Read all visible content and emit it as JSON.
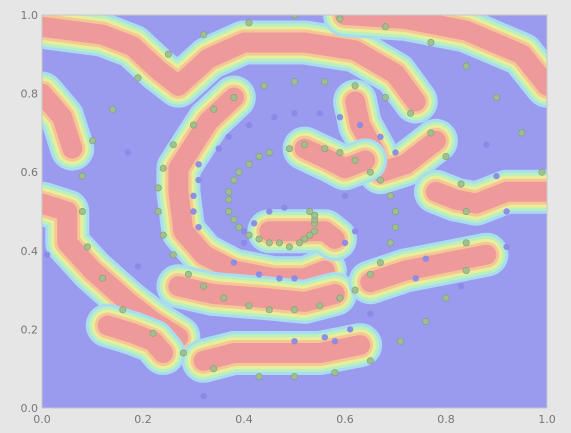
{
  "chart_data": {
    "type": "scatter",
    "title": "",
    "xlabel": "",
    "ylabel": "",
    "xlim": [
      0,
      1
    ],
    "ylim": [
      0,
      1
    ],
    "x_ticks": [
      "0.0",
      "0.2",
      "0.4",
      "0.6",
      "0.8",
      "1.0"
    ],
    "y_ticks": [
      "0.0",
      "0.2",
      "0.4",
      "0.6",
      "0.8",
      "1.0"
    ],
    "background": "decision-regions",
    "region_colors": {
      "class_a": "#ee9a9a",
      "class_b": "#9a9aee",
      "boundary": [
        "#f4c795",
        "#e9ee9a",
        "#b8f0c0",
        "#a9dcef"
      ]
    },
    "series": [
      {
        "color": "#8a8ae6",
        "points": [
          [
            0.31,
            0.58
          ],
          [
            0.31,
            0.62
          ],
          [
            0.35,
            0.66
          ],
          [
            0.37,
            0.69
          ],
          [
            0.41,
            0.72
          ],
          [
            0.46,
            0.74
          ],
          [
            0.5,
            0.75
          ],
          [
            0.55,
            0.75
          ],
          [
            0.59,
            0.74
          ],
          [
            0.63,
            0.72
          ],
          [
            0.67,
            0.69
          ],
          [
            0.7,
            0.65
          ],
          [
            0.6,
            0.54
          ],
          [
            0.6,
            0.42
          ],
          [
            0.62,
            0.45
          ],
          [
            0.3,
            0.5
          ],
          [
            0.3,
            0.54
          ],
          [
            0.31,
            0.46
          ],
          [
            0.38,
            0.37
          ],
          [
            0.43,
            0.34
          ],
          [
            0.47,
            0.33
          ],
          [
            0.5,
            0.33
          ],
          [
            0.32,
            0.03
          ],
          [
            0.5,
            0.17
          ],
          [
            0.56,
            0.18
          ],
          [
            0.58,
            0.17
          ],
          [
            0.61,
            0.2
          ],
          [
            0.65,
            0.24
          ],
          [
            0.74,
            0.33
          ],
          [
            0.76,
            0.38
          ],
          [
            0.83,
            0.31
          ],
          [
            0.88,
            0.67
          ],
          [
            0.9,
            0.59
          ],
          [
            0.92,
            0.5
          ],
          [
            0.92,
            0.41
          ],
          [
            0.19,
            0.36
          ],
          [
            0.17,
            0.65
          ],
          [
            0.01,
            0.39
          ],
          [
            0.45,
            0.5
          ],
          [
            0.42,
            0.47
          ],
          [
            0.4,
            0.45
          ],
          [
            0.4,
            0.42
          ],
          [
            0.48,
            0.51
          ]
        ]
      },
      {
        "color": "#9ebf8c",
        "points": [
          [
            0.32,
            0.95
          ],
          [
            0.41,
            0.98
          ],
          [
            0.5,
            1.0
          ],
          [
            0.59,
            0.99
          ],
          [
            0.68,
            0.97
          ],
          [
            0.77,
            0.93
          ],
          [
            0.84,
            0.87
          ],
          [
            0.9,
            0.79
          ],
          [
            0.95,
            0.7
          ],
          [
            0.99,
            0.6
          ],
          [
            0.25,
            0.9
          ],
          [
            0.19,
            0.84
          ],
          [
            0.14,
            0.76
          ],
          [
            0.1,
            0.68
          ],
          [
            0.08,
            0.59
          ],
          [
            0.08,
            0.5
          ],
          [
            0.09,
            0.41
          ],
          [
            0.12,
            0.33
          ],
          [
            0.16,
            0.25
          ],
          [
            0.22,
            0.19
          ],
          [
            0.28,
            0.14
          ],
          [
            0.34,
            0.1
          ],
          [
            0.43,
            0.08
          ],
          [
            0.5,
            0.08
          ],
          [
            0.58,
            0.09
          ],
          [
            0.65,
            0.12
          ],
          [
            0.71,
            0.17
          ],
          [
            0.76,
            0.22
          ],
          [
            0.8,
            0.28
          ],
          [
            0.84,
            0.35
          ],
          [
            0.84,
            0.42
          ],
          [
            0.84,
            0.5
          ],
          [
            0.83,
            0.57
          ],
          [
            0.8,
            0.64
          ],
          [
            0.77,
            0.7
          ],
          [
            0.73,
            0.75
          ],
          [
            0.68,
            0.79
          ],
          [
            0.62,
            0.82
          ],
          [
            0.56,
            0.83
          ],
          [
            0.5,
            0.83
          ],
          [
            0.44,
            0.82
          ],
          [
            0.38,
            0.79
          ],
          [
            0.34,
            0.76
          ],
          [
            0.3,
            0.72
          ],
          [
            0.26,
            0.67
          ],
          [
            0.24,
            0.61
          ],
          [
            0.23,
            0.56
          ],
          [
            0.23,
            0.5
          ],
          [
            0.24,
            0.44
          ],
          [
            0.26,
            0.39
          ],
          [
            0.29,
            0.34
          ],
          [
            0.32,
            0.31
          ],
          [
            0.36,
            0.28
          ],
          [
            0.41,
            0.26
          ],
          [
            0.45,
            0.25
          ],
          [
            0.5,
            0.25
          ],
          [
            0.55,
            0.26
          ],
          [
            0.59,
            0.28
          ],
          [
            0.62,
            0.3
          ],
          [
            0.65,
            0.34
          ],
          [
            0.67,
            0.37
          ],
          [
            0.69,
            0.42
          ],
          [
            0.7,
            0.46
          ],
          [
            0.7,
            0.5
          ],
          [
            0.69,
            0.54
          ],
          [
            0.67,
            0.58
          ],
          [
            0.65,
            0.6
          ],
          [
            0.62,
            0.63
          ],
          [
            0.59,
            0.65
          ],
          [
            0.56,
            0.66
          ],
          [
            0.52,
            0.67
          ],
          [
            0.49,
            0.66
          ],
          [
            0.45,
            0.65
          ],
          [
            0.43,
            0.64
          ],
          [
            0.41,
            0.62
          ],
          [
            0.39,
            0.6
          ],
          [
            0.38,
            0.58
          ],
          [
            0.37,
            0.55
          ],
          [
            0.37,
            0.53
          ],
          [
            0.37,
            0.5
          ],
          [
            0.38,
            0.48
          ],
          [
            0.39,
            0.46
          ],
          [
            0.41,
            0.44
          ],
          [
            0.43,
            0.43
          ],
          [
            0.45,
            0.42
          ],
          [
            0.47,
            0.42
          ],
          [
            0.49,
            0.41
          ],
          [
            0.51,
            0.42
          ],
          [
            0.52,
            0.43
          ],
          [
            0.53,
            0.44
          ],
          [
            0.54,
            0.45
          ],
          [
            0.54,
            0.47
          ],
          [
            0.54,
            0.48
          ],
          [
            0.54,
            0.49
          ],
          [
            0.53,
            0.5
          ]
        ]
      }
    ]
  }
}
